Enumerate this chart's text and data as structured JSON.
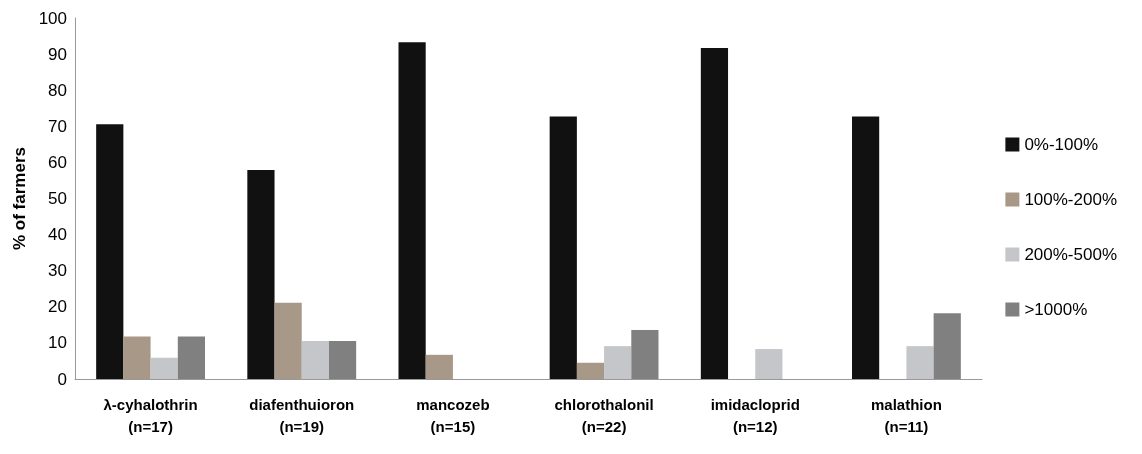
{
  "chart_data": {
    "type": "bar",
    "ylabel": "% of farmers",
    "categories": [
      "λ-cyhalothrin\n(n=17)",
      "diafenthuioron\n(n=19)",
      "mancozeb\n(n=15)",
      "chlorothalonil\n(n=22)",
      "imidacloprid\n(n=12)",
      "malathion\n(n=11)"
    ],
    "series": [
      {
        "name": "0%-100%",
        "color": "#111111",
        "values": [
          70.6,
          57.9,
          93.3,
          72.7,
          91.7,
          72.7
        ]
      },
      {
        "name": "100%-200%",
        "color": "#a89888",
        "values": [
          11.8,
          21.1,
          6.7,
          4.5,
          null,
          null
        ]
      },
      {
        "name": "200%-500%",
        "color": "#c4c6c9",
        "values": [
          5.9,
          10.5,
          null,
          9.1,
          8.3,
          9.1
        ]
      },
      {
        "name": ">1000%",
        "color": "#808080",
        "values": [
          11.8,
          10.5,
          null,
          13.6,
          null,
          18.2
        ]
      }
    ],
    "ylim": [
      0,
      100
    ],
    "yticks": [
      0,
      10,
      20,
      30,
      40,
      50,
      60,
      70,
      80,
      90,
      100
    ],
    "grid": false,
    "legend": "right"
  }
}
